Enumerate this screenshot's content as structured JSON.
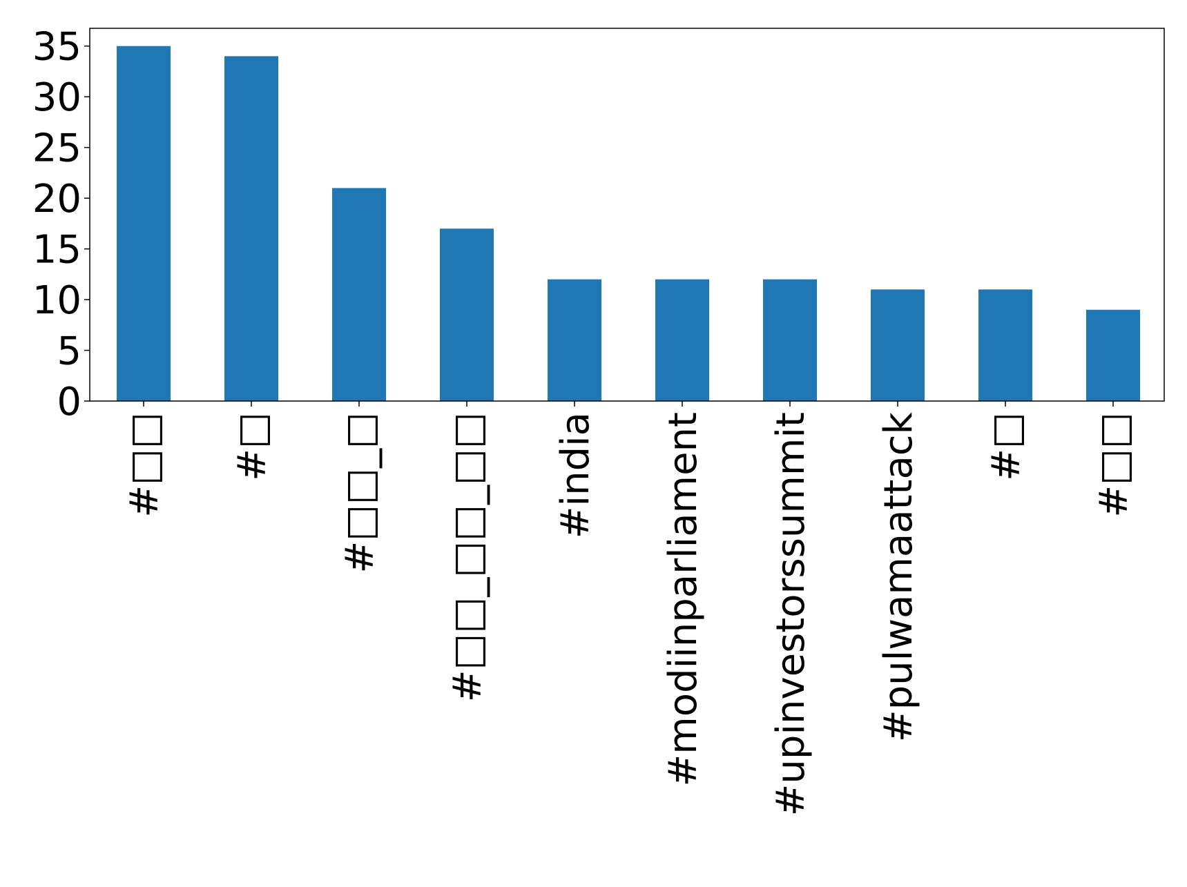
{
  "chart_data": {
    "type": "bar",
    "title": "",
    "xlabel": "",
    "ylabel": "",
    "categories": [
      "#□□",
      "#□",
      "#□□_□",
      "#□□_□□_□□",
      "#india",
      "#modiinparliament",
      "#upinvestorssummit",
      "#pulwamaattack",
      "#□",
      "#□□"
    ],
    "values": [
      35,
      34,
      21,
      17,
      12,
      12,
      12,
      11,
      11,
      9
    ],
    "ylim": [
      0,
      36.75
    ],
    "yticks": [
      "0",
      "5",
      "10",
      "15",
      "20",
      "25",
      "30",
      "35"
    ],
    "grid": false,
    "legend": "none",
    "colors": {
      "bar": "#1f77b4",
      "axis": "#000000"
    }
  }
}
